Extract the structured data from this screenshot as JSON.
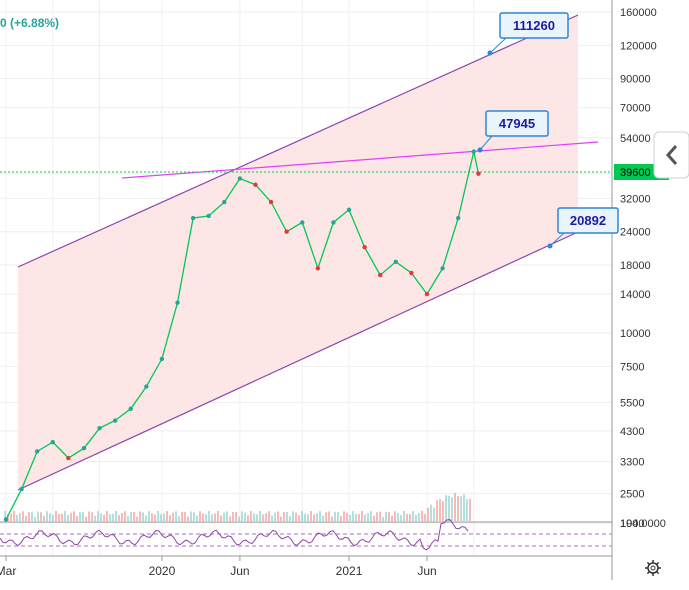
{
  "header": {
    "change_text": "0 (+6.88%)"
  },
  "price_tag": "39600",
  "colors": {
    "channel_fill": "#fde2e2",
    "channel_line": "#8e44ad",
    "resistance_line": "#e040fb",
    "price_line": "#00c853",
    "up_candle": "#26a69a",
    "down_candle": "#e53935",
    "callout_border": "#2f86d6",
    "callout_fill": "#eaf4fd",
    "rsi_line": "#8e44ad"
  },
  "icons": {
    "collapse": "chevron-left-icon",
    "settings": "gear-icon"
  },
  "chart_data": {
    "type": "line",
    "title": "",
    "y_scale": "log",
    "y_ticks": [
      "160000",
      "120000",
      "90000",
      "70000",
      "54000",
      "39600",
      "32000",
      "24000",
      "18000",
      "14000",
      "10000",
      "7500",
      "5500",
      "4300",
      "3300",
      "2500",
      "1940"
    ],
    "x_ticks": [
      "Mar",
      "2020",
      "Jun",
      "2021",
      "Jun"
    ],
    "price_series": [
      {
        "x": "2019-03",
        "y": 2000
      },
      {
        "x": "2019-04",
        "y": 2600
      },
      {
        "x": "2019-05",
        "y": 3600
      },
      {
        "x": "2019-06",
        "y": 3900
      },
      {
        "x": "2019-07",
        "y": 3400
      },
      {
        "x": "2019-08",
        "y": 3700
      },
      {
        "x": "2019-09",
        "y": 4400
      },
      {
        "x": "2019-10",
        "y": 4700
      },
      {
        "x": "2019-11",
        "y": 5200
      },
      {
        "x": "2019-12",
        "y": 6300
      },
      {
        "x": "2020-01",
        "y": 8000
      },
      {
        "x": "2020-02",
        "y": 13000
      },
      {
        "x": "2020-03",
        "y": 27000
      },
      {
        "x": "2020-04",
        "y": 27500
      },
      {
        "x": "2020-05",
        "y": 31000
      },
      {
        "x": "2020-06",
        "y": 38000
      },
      {
        "x": "2020-07",
        "y": 36000
      },
      {
        "x": "2020-08",
        "y": 31000
      },
      {
        "x": "2020-09",
        "y": 24000
      },
      {
        "x": "2020-10",
        "y": 26000
      },
      {
        "x": "2020-11",
        "y": 17500
      },
      {
        "x": "2020-12",
        "y": 26000
      },
      {
        "x": "2021-01",
        "y": 29000
      },
      {
        "x": "2021-02",
        "y": 21000
      },
      {
        "x": "2021-03",
        "y": 16500
      },
      {
        "x": "2021-04",
        "y": 18500
      },
      {
        "x": "2021-05",
        "y": 16800
      },
      {
        "x": "2021-06",
        "y": 14000
      },
      {
        "x": "2021-07",
        "y": 17500
      },
      {
        "x": "2021-08",
        "y": 27000
      },
      {
        "x": "2021-09",
        "y": 47945
      },
      {
        "x": "2021-09-10",
        "y": 39600
      }
    ],
    "current_price": 39600,
    "annotations": [
      {
        "label": "111260",
        "type": "upper-channel-target"
      },
      {
        "label": "47945",
        "type": "resistance-touch"
      },
      {
        "label": "20892",
        "type": "lower-channel-target"
      }
    ],
    "lines": [
      "ascending channel upper",
      "ascending channel lower",
      "resistance trendline",
      "horizontal price line"
    ],
    "volume_axis_label": "1940",
    "rsi_axis_label": "100.0000",
    "grid": true
  }
}
